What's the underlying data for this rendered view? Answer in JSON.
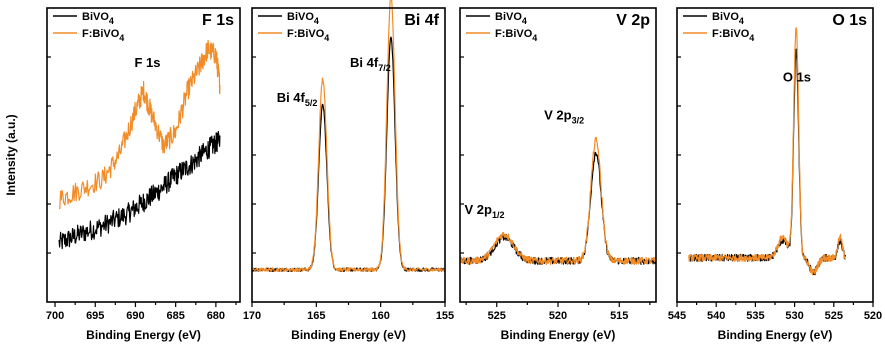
{
  "figure": {
    "ylabel": "Intensity (a.u.)",
    "colors": {
      "black_series": "#000000",
      "orange_series": "#f28c28"
    }
  },
  "chart_data": [
    {
      "type": "line",
      "title": "F 1s",
      "xlabel": "Binding Energy (eV)",
      "ylabel": "Intensity (a.u.)",
      "xlim": [
        701,
        677
      ],
      "x_reversed": true,
      "xticks": [
        700,
        695,
        690,
        685,
        680
      ],
      "ylim": [
        0,
        1
      ],
      "y_tick_labels_shown": false,
      "legend": {
        "placement": "top-left",
        "entries": [
          {
            "text": "BiVO",
            "sub": "4"
          },
          {
            "text": "F:BiVO",
            "sub": "4"
          }
        ]
      },
      "annotations": [
        {
          "text": "F 1s",
          "x": 688.5,
          "y": 0.8
        }
      ],
      "series": [
        {
          "name": "BiVO4",
          "color": "#000000",
          "x": [
            699.5,
            697,
            694,
            691,
            689,
            687,
            685,
            683,
            681,
            679.5
          ],
          "y": [
            0.2,
            0.23,
            0.26,
            0.3,
            0.34,
            0.38,
            0.43,
            0.47,
            0.52,
            0.55
          ]
        },
        {
          "name": "F:BiVO4",
          "color": "#f28c28",
          "x": [
            699.5,
            697,
            694,
            692,
            690,
            689,
            688,
            686.5,
            685,
            683.5,
            682,
            681,
            680,
            679.5
          ],
          "y": [
            0.35,
            0.38,
            0.42,
            0.5,
            0.65,
            0.72,
            0.64,
            0.53,
            0.58,
            0.72,
            0.8,
            0.86,
            0.84,
            0.74
          ]
        }
      ],
      "noise": [
        0.022,
        0.022
      ]
    },
    {
      "type": "line",
      "title": "Bi 4f",
      "xlabel": "Binding Energy (eV)",
      "xlim": [
        170,
        155
      ],
      "x_reversed": true,
      "xticks": [
        170,
        165,
        160,
        155
      ],
      "ylim": [
        0,
        1
      ],
      "legend": {
        "placement": "top-left",
        "entries": [
          {
            "text": "BiVO",
            "sub": "4"
          },
          {
            "text": "F:BiVO",
            "sub": "4"
          }
        ]
      },
      "annotations": [
        {
          "text": "Bi 4f",
          "sub": "5/2",
          "x": 166.5,
          "y": 0.68
        },
        {
          "text": "Bi 4f",
          "sub": "7/2",
          "x": 160.8,
          "y": 0.8
        }
      ],
      "series": [
        {
          "name": "BiVO4",
          "color": "#000000",
          "baseline": 0.11,
          "peaks": [
            {
              "center": 164.5,
              "height": 0.56,
              "width": 0.45
            },
            {
              "center": 159.2,
              "height": 0.79,
              "width": 0.45
            }
          ]
        },
        {
          "name": "F:BiVO4",
          "color": "#f28c28",
          "baseline": 0.11,
          "peaks": [
            {
              "center": 164.5,
              "height": 0.65,
              "width": 0.45
            },
            {
              "center": 159.2,
              "height": 0.93,
              "width": 0.45
            }
          ]
        }
      ],
      "noise": [
        0.006,
        0.006
      ]
    },
    {
      "type": "line",
      "title": "V 2p",
      "xlabel": "Binding Energy (eV)",
      "xlim": [
        528,
        512
      ],
      "x_reversed": true,
      "xticks": [
        525,
        520,
        515
      ],
      "ylim": [
        0,
        1
      ],
      "legend": {
        "placement": "top-left",
        "entries": [
          {
            "text": "BiVO",
            "sub": "4"
          },
          {
            "text": "F:BiVO",
            "sub": "4"
          }
        ]
      },
      "annotations": [
        {
          "text": "V 2p",
          "sub": "1/2",
          "x": 526,
          "y": 0.3
        },
        {
          "text": "V 2p",
          "sub": "3/2",
          "x": 519.5,
          "y": 0.62
        }
      ],
      "series": [
        {
          "name": "BiVO4",
          "color": "#000000",
          "baseline": 0.14,
          "peaks": [
            {
              "center": 524.4,
              "height": 0.08,
              "width": 1.1
            },
            {
              "center": 516.9,
              "height": 0.37,
              "width": 0.6
            }
          ]
        },
        {
          "name": "F:BiVO4",
          "color": "#f28c28",
          "baseline": 0.14,
          "peaks": [
            {
              "center": 524.4,
              "height": 0.09,
              "width": 1.1
            },
            {
              "center": 516.9,
              "height": 0.41,
              "width": 0.6
            }
          ]
        }
      ],
      "noise": [
        0.012,
        0.012
      ]
    },
    {
      "type": "line",
      "title": "O 1s",
      "xlabel": "Binding Energy (eV)",
      "xlim": [
        545,
        520
      ],
      "x_reversed": true,
      "xticks": [
        545,
        540,
        535,
        530,
        525,
        520
      ],
      "ylim": [
        0,
        1
      ],
      "legend": {
        "placement": "top-left",
        "entries": [
          {
            "text": "BiVO",
            "sub": "4"
          },
          {
            "text": "F:BiVO",
            "sub": "4"
          }
        ]
      },
      "annotations": [
        {
          "text": "O 1s",
          "x": 529.7,
          "y": 0.75
        }
      ],
      "series": [
        {
          "name": "BiVO4",
          "color": "#000000",
          "x_range": [
            543.5,
            523.5
          ],
          "baseline": 0.15,
          "peaks": [
            {
              "center": 529.8,
              "height": 0.7,
              "width": 0.45
            },
            {
              "center": 531.5,
              "height": 0.06,
              "width": 0.9
            },
            {
              "center": 524.2,
              "height": 0.06,
              "width": 0.4
            },
            {
              "center": 527.6,
              "height": -0.05,
              "width": 0.7
            }
          ]
        },
        {
          "name": "F:BiVO4",
          "color": "#f28c28",
          "x_range": [
            543.5,
            523.5
          ],
          "baseline": 0.15,
          "peaks": [
            {
              "center": 529.8,
              "height": 0.78,
              "width": 0.45
            },
            {
              "center": 531.5,
              "height": 0.07,
              "width": 0.9
            },
            {
              "center": 524.2,
              "height": 0.07,
              "width": 0.4
            },
            {
              "center": 527.6,
              "height": -0.05,
              "width": 0.7
            }
          ]
        }
      ],
      "noise": [
        0.012,
        0.012
      ]
    }
  ]
}
